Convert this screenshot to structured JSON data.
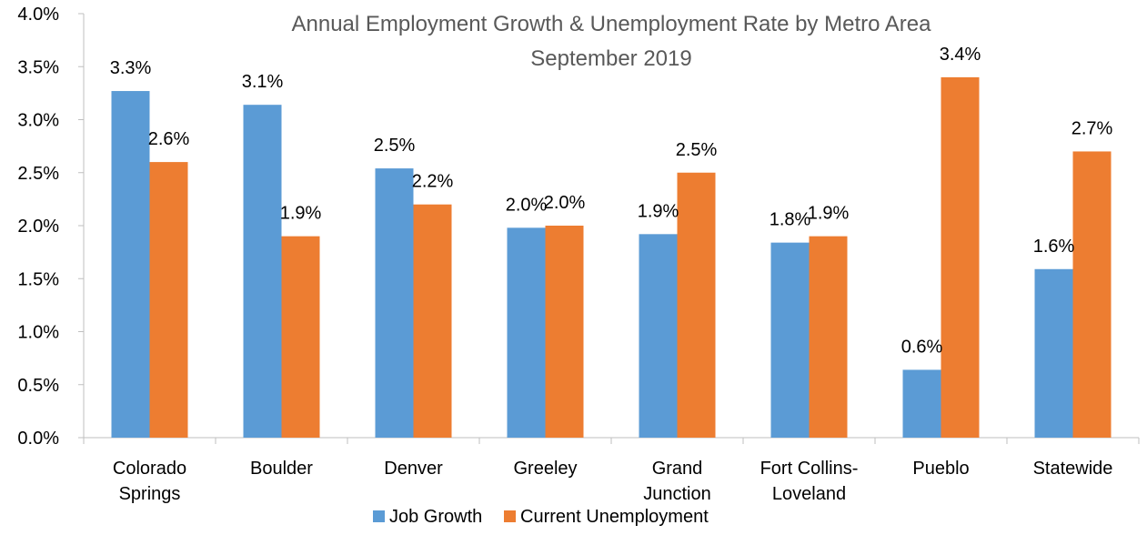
{
  "chart_data": {
    "type": "bar",
    "title": "Annual Employment Growth & Unemployment Rate by Metro Area",
    "subtitle": "September 2019",
    "xlabel": "",
    "ylabel": "",
    "ylim": [
      0,
      4.0
    ],
    "y_ticks": [
      "0.0%",
      "0.5%",
      "1.0%",
      "1.5%",
      "2.0%",
      "2.5%",
      "3.0%",
      "3.5%",
      "4.0%"
    ],
    "y_tick_values": [
      0,
      0.5,
      1.0,
      1.5,
      2.0,
      2.5,
      3.0,
      3.5,
      4.0
    ],
    "categories": [
      [
        "Colorado",
        "Springs"
      ],
      [
        "Boulder"
      ],
      [
        "Denver"
      ],
      [
        "Greeley"
      ],
      [
        "Grand",
        "Junction"
      ],
      [
        "Fort Collins-",
        "Loveland"
      ],
      [
        "Pueblo"
      ],
      [
        "Statewide"
      ]
    ],
    "series": [
      {
        "name": "Job Growth",
        "color": "#5B9BD5",
        "values": [
          3.27,
          3.14,
          2.54,
          1.98,
          1.92,
          1.84,
          0.64,
          1.59
        ],
        "labels": [
          "3.3%",
          "3.1%",
          "2.5%",
          "2.0%",
          "1.9%",
          "1.8%",
          "0.6%",
          "1.6%"
        ]
      },
      {
        "name": "Current Unemployment",
        "color": "#ED7D31",
        "values": [
          2.6,
          1.9,
          2.2,
          2.0,
          2.5,
          1.9,
          3.4,
          2.7
        ],
        "labels": [
          "2.6%",
          "1.9%",
          "2.2%",
          "2.0%",
          "2.5%",
          "1.9%",
          "3.4%",
          "2.7%"
        ]
      }
    ],
    "grid": false,
    "legend_position": "bottom"
  }
}
